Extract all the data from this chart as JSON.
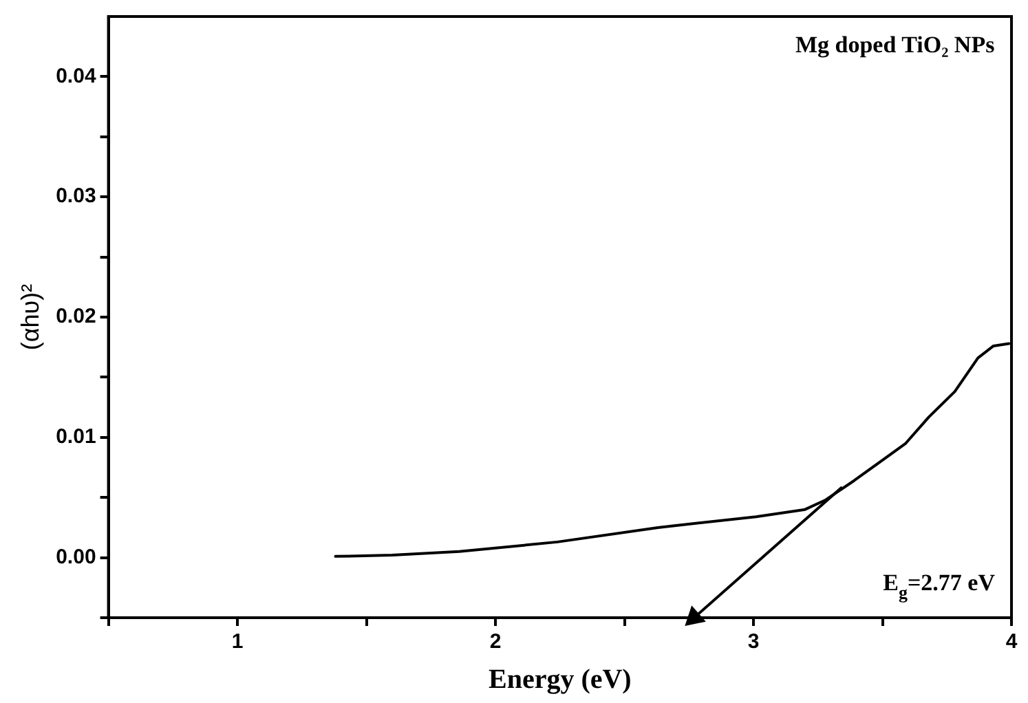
{
  "chart_data": {
    "type": "line",
    "xlabel": "Energy (eV)",
    "ylabel": "(αhυ)²",
    "xlim": [
      0.5,
      4
    ],
    "ylim": [
      -0.005,
      0.045
    ],
    "xticks": [
      {
        "value": 0.5,
        "label": null
      },
      1,
      {
        "value": 1.5,
        "label": null
      },
      2,
      {
        "value": 2.5,
        "label": null
      },
      3,
      {
        "value": 3.5,
        "label": null
      },
      4
    ],
    "yticks": [
      {
        "value": -0.005,
        "label": null
      },
      "0.00",
      {
        "value": 0.005,
        "label": null
      },
      0.01,
      {
        "value": 0.015,
        "label": null
      },
      0.02,
      {
        "value": 0.025,
        "label": null
      },
      0.03,
      {
        "value": 0.035,
        "label": null
      },
      0.04
    ],
    "grid": false,
    "legend": false,
    "line_style": "solid",
    "annotations": [
      "Mg doped TiO₂ NPs",
      "E$_{g}$=2.77 eV"
    ],
    "series": [
      {
        "color": "#000000",
        "marker": "none",
        "x": [
          1.38,
          1.6,
          1.86,
          2.24,
          2.63,
          3.01,
          3.2,
          3.28,
          3.39,
          3.59,
          3.68,
          3.78,
          3.87,
          3.93,
          3.99
        ],
        "values": [
          0.0001,
          0.0002,
          0.0005,
          0.0013,
          0.0025,
          0.0034,
          0.004,
          0.0048,
          0.0064,
          0.0095,
          0.0117,
          0.0138,
          0.0166,
          0.0176,
          0.0178
        ]
      },
      {
        "color": "#000000",
        "marker": "triangle",
        "x": [
          2.77,
          3.34
        ],
        "values": [
          -0.005,
          0.0058
        ]
      }
    ]
  }
}
